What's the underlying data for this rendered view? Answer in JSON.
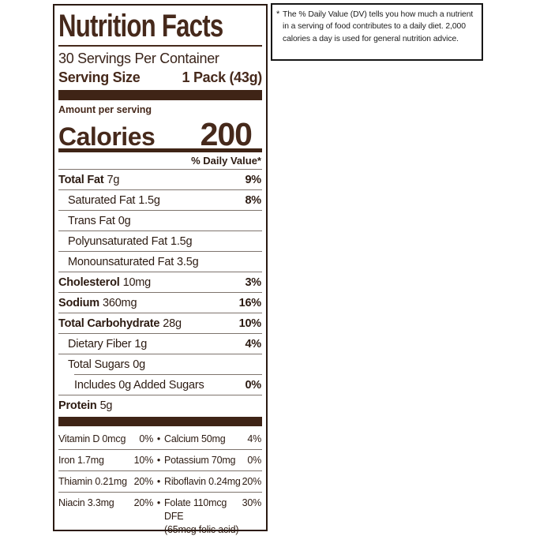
{
  "colors": {
    "brand_brown": "#46291b",
    "body_text": "#2c1b12",
    "bar_brown": "#3f2416",
    "hairline_gray": "#7e746d",
    "footnote_text": "#1c1c1c",
    "background": "#ffffff"
  },
  "label": {
    "title": "Nutrition Facts",
    "servings_per_container": "30 Servings Per Container",
    "serving_size_label": "Serving Size",
    "serving_size_value": "1 Pack (43g)",
    "amount_per_serving": "Amount per serving",
    "calories_label": "Calories",
    "calories_value": "200",
    "daily_value_header": "% Daily Value*",
    "bullet": "•",
    "rows": [
      {
        "name": "Total Fat",
        "amount": "7g",
        "dv": "9%"
      },
      {
        "name": "Saturated Fat",
        "amount": "1.5g",
        "dv": "8%"
      },
      {
        "name": "Trans Fat",
        "amount": "0g",
        "dv": ""
      },
      {
        "name": "Polyunsaturated Fat",
        "amount": "1.5g",
        "dv": ""
      },
      {
        "name": "Monounsaturated Fat",
        "amount": "3.5g",
        "dv": ""
      },
      {
        "name": "Cholesterol",
        "amount": "10mg",
        "dv": "3%"
      },
      {
        "name": "Sodium",
        "amount": "360mg",
        "dv": "16%"
      },
      {
        "name": "Total Carbohydrate",
        "amount": "28g",
        "dv": "10%"
      },
      {
        "name": "Dietary Fiber",
        "amount": "1g",
        "dv": "4%"
      },
      {
        "name": "Total Sugars",
        "amount": "0g",
        "dv": ""
      },
      {
        "name": "Includes 0g Added Sugars",
        "amount": "",
        "dv": "0%"
      },
      {
        "name": "Protein",
        "amount": "5g",
        "dv": ""
      }
    ],
    "micros": [
      {
        "left": "Vitamin D 0mcg",
        "left_dv": "0%",
        "right": "Calcium 50mg",
        "right_dv": "4%"
      },
      {
        "left": "Iron 1.7mg",
        "left_dv": "10%",
        "right": "Potassium 70mg",
        "right_dv": "0%"
      },
      {
        "left": "Thiamin 0.21mg",
        "left_dv": "20%",
        "right": "Riboflavin 0.24mg",
        "right_dv": "20%"
      },
      {
        "left": "Niacin 3.3mg",
        "left_dv": "20%",
        "right": "Folate 110mcg DFE",
        "right_dv": "30%",
        "right_note": "(65mcg folic acid)"
      }
    ]
  },
  "footnote": {
    "symbol": "*",
    "lines": [
      "The % Daily Value (DV) tells you how much a nutrient",
      "in a serving of food contributes to a daily diet. 2,000",
      "calories a day is used for general nutrition advice."
    ]
  }
}
